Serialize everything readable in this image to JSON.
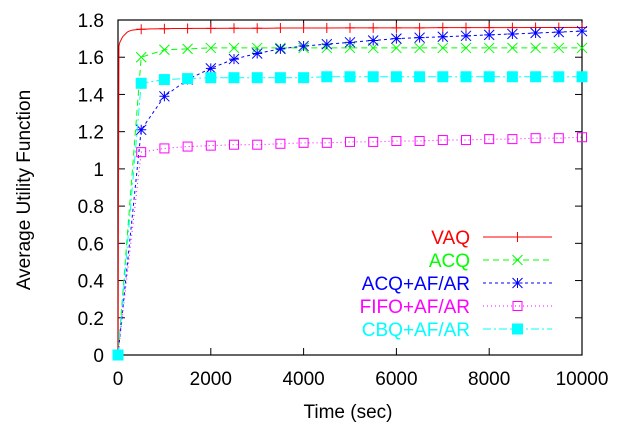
{
  "chart_data": {
    "type": "line",
    "title": "",
    "xlabel": "Time (sec)",
    "ylabel": "Average Utility Function",
    "xlim": [
      0,
      10000
    ],
    "ylim": [
      0,
      1.8
    ],
    "xticks": [
      0,
      2000,
      4000,
      6000,
      8000,
      10000
    ],
    "yticks": [
      0,
      0.2,
      0.4,
      0.6,
      0.8,
      1,
      1.2,
      1.4,
      1.6,
      1.8
    ],
    "grid": false,
    "legend_position": "bottom-right",
    "series": [
      {
        "name": "VAQ",
        "color": "#ff0000",
        "marker": "plus",
        "dash": "solid",
        "x": [
          0,
          20,
          40,
          60,
          80,
          100,
          120,
          140,
          160,
          180,
          200,
          220,
          240,
          260,
          280,
          300,
          350,
          400,
          450,
          500,
          600,
          700,
          800,
          900,
          1000,
          1200,
          1400,
          1600,
          1800,
          2000,
          2400,
          2800,
          3200,
          3600,
          4000,
          4500,
          5000,
          5500,
          6000,
          6500,
          7000,
          7500,
          8000,
          8500,
          9000,
          9500,
          10000
        ],
        "y": [
          0,
          1.66,
          1.68,
          1.69,
          1.7,
          1.71,
          1.715,
          1.72,
          1.725,
          1.73,
          1.735,
          1.738,
          1.74,
          1.742,
          1.744,
          1.745,
          1.747,
          1.748,
          1.749,
          1.75,
          1.751,
          1.752,
          1.752,
          1.753,
          1.753,
          1.754,
          1.754,
          1.755,
          1.755,
          1.755,
          1.756,
          1.756,
          1.756,
          1.757,
          1.757,
          1.757,
          1.758,
          1.758,
          1.758,
          1.758,
          1.759,
          1.759,
          1.759,
          1.759,
          1.76,
          1.76,
          1.76
        ]
      },
      {
        "name": "ACQ",
        "color": "#00ff00",
        "marker": "cross",
        "dash": "6,4",
        "x": [
          0,
          500,
          1000,
          1500,
          2000,
          2500,
          3000,
          3500,
          4000,
          4500,
          5000,
          5500,
          6000,
          6500,
          7000,
          7500,
          8000,
          8500,
          9000,
          9500,
          10000
        ],
        "y": [
          0,
          1.6,
          1.64,
          1.645,
          1.65,
          1.65,
          1.65,
          1.65,
          1.65,
          1.65,
          1.65,
          1.65,
          1.65,
          1.65,
          1.65,
          1.65,
          1.65,
          1.65,
          1.65,
          1.65,
          1.65
        ]
      },
      {
        "name": "ACQ+AF/AR",
        "color": "#0000ff",
        "marker": "star",
        "dash": "3,3",
        "x": [
          0,
          500,
          1000,
          1500,
          2000,
          2500,
          3000,
          3500,
          4000,
          4500,
          5000,
          5500,
          6000,
          6500,
          7000,
          7500,
          8000,
          8500,
          9000,
          9500,
          10000
        ],
        "y": [
          0,
          1.21,
          1.39,
          1.48,
          1.54,
          1.59,
          1.62,
          1.645,
          1.66,
          1.67,
          1.68,
          1.69,
          1.7,
          1.705,
          1.71,
          1.715,
          1.72,
          1.725,
          1.73,
          1.735,
          1.74
        ]
      },
      {
        "name": "FIFO+AF/AR",
        "color": "#ff00ff",
        "marker": "square-open",
        "dash": "1,3",
        "x": [
          0,
          500,
          1000,
          1500,
          2000,
          2500,
          3000,
          3500,
          4000,
          4500,
          5000,
          5500,
          6000,
          6500,
          7000,
          7500,
          8000,
          8500,
          9000,
          9500,
          10000
        ],
        "y": [
          0,
          1.09,
          1.11,
          1.12,
          1.125,
          1.13,
          1.13,
          1.135,
          1.14,
          1.14,
          1.145,
          1.145,
          1.15,
          1.15,
          1.155,
          1.155,
          1.16,
          1.16,
          1.165,
          1.165,
          1.17
        ]
      },
      {
        "name": "CBQ+AF/AR",
        "color": "#00ffff",
        "marker": "square-filled",
        "dash": "8,3,2,3",
        "x": [
          0,
          500,
          1000,
          1500,
          2000,
          2500,
          3000,
          3500,
          4000,
          4500,
          5000,
          5500,
          6000,
          6500,
          7000,
          7500,
          8000,
          8500,
          9000,
          9500,
          10000
        ],
        "y": [
          0,
          1.46,
          1.48,
          1.485,
          1.49,
          1.49,
          1.49,
          1.49,
          1.49,
          1.495,
          1.495,
          1.495,
          1.495,
          1.495,
          1.495,
          1.495,
          1.495,
          1.495,
          1.495,
          1.495,
          1.495
        ]
      }
    ]
  }
}
